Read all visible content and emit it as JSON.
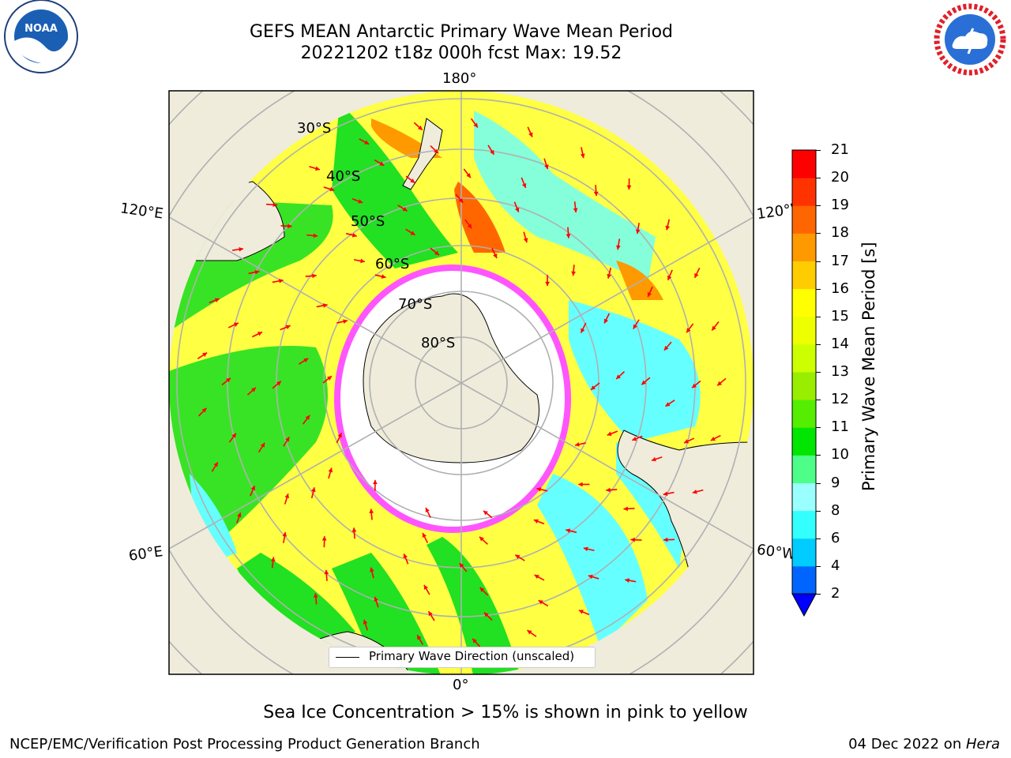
{
  "header": {
    "title_line1": "GEFS MEAN Antarctic Primary Wave Mean Period",
    "title_line2": "20221202 t18z 000h fcst   Max: 19.52"
  },
  "logos": {
    "left": {
      "name": "noaa-logo",
      "text": "NOAA"
    },
    "right": {
      "name": "national-weather-service-logo",
      "text": "NATIONAL WEATHER SERVICE"
    }
  },
  "map": {
    "projection": "south-polar-stereographic",
    "longitude_labels": {
      "top": "180°",
      "bottom": "0°",
      "left_upper": "120°E",
      "left_lower": "60°E",
      "right_upper": "120°W",
      "right_lower": "60°W"
    },
    "latitude_labels": [
      "30°S",
      "40°S",
      "50°S",
      "60°S",
      "70°S",
      "80°S"
    ],
    "legend": {
      "label": "Primary Wave Direction (unscaled)"
    },
    "arrow_color": "#ff0000",
    "land_color": "#efecdc",
    "ice_note": "Sea Ice Concentration > 15% is shown in pink to yellow"
  },
  "colorbar": {
    "label": "Primary Wave Mean Period [s]",
    "ticks": [
      "2",
      "4",
      "6",
      "8",
      "9",
      "10",
      "11",
      "12",
      "13",
      "14",
      "15",
      "16",
      "17",
      "18",
      "19",
      "20",
      "21"
    ],
    "colors": [
      "#0064ff",
      "#00ccff",
      "#33ffff",
      "#99ffff",
      "#4dff88",
      "#00e600",
      "#55ee00",
      "#99ee00",
      "#ccff00",
      "#eeff00",
      "#ffff00",
      "#ffcc00",
      "#ff9900",
      "#ff6600",
      "#ff3300",
      "#ff0000"
    ],
    "extend_color": "#0000ff"
  },
  "footer": {
    "left": "NCEP/EMC/Verification Post Processing Product Generation Branch",
    "right_date": "04 Dec 2022 on ",
    "right_machine": "Hera"
  }
}
